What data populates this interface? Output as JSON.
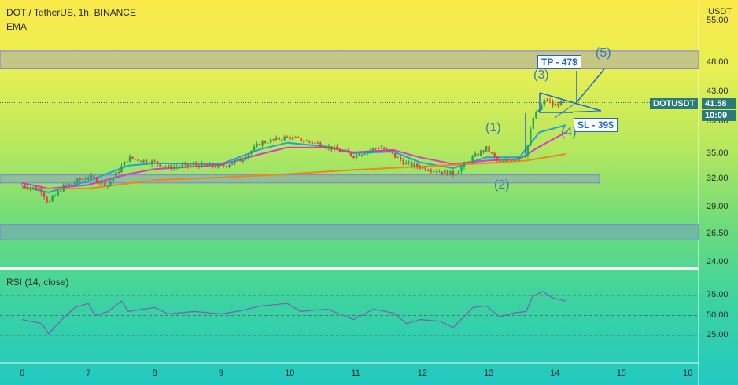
{
  "header": {
    "title": "DOT / TetherUS, 1h, BINANCE",
    "indicator": "EMA",
    "currency": "USDT"
  },
  "symbol_tag": {
    "name": "DOTUSDT",
    "price": "41.58",
    "countdown": "10:09"
  },
  "rsi": {
    "title": "RSI (14, close)"
  },
  "annotations": {
    "tp": "TP - 47$",
    "sl": "SL - 39$",
    "w1": "(1)",
    "w2": "(2)",
    "w3": "(3)",
    "w4": "(4)",
    "w5": "(5)"
  },
  "colors": {
    "up": "#22a35a",
    "down": "#e0413b",
    "ema_fast": "#1aa5d8",
    "ema_mid": "#d63cc8",
    "ema_slow": "#f0861c",
    "zone": "#7e7ee6",
    "rsi": "#7b5fb5",
    "annot": "#1f66d6"
  },
  "chart_data": [
    {
      "type": "candlestick",
      "title": "DOT / TetherUS, 1h, BINANCE",
      "y_ticks": [
        "24.00",
        "26.50",
        "29.00",
        "32.00",
        "35.00",
        "39.00",
        "43.00",
        "48.00",
        "55.00"
      ],
      "x_ticks": [
        "6",
        "7",
        "8",
        "9",
        "10",
        "11",
        "12",
        "13",
        "14",
        "15",
        "16"
      ],
      "price_series": [
        {
          "x": "6",
          "y": 31.4
        },
        {
          "x": "6.3",
          "y": 30.8
        },
        {
          "x": "6.4",
          "y": 29.4
        },
        {
          "x": "6.6",
          "y": 31.1
        },
        {
          "x": "7",
          "y": 32.3
        },
        {
          "x": "7.3",
          "y": 31.4
        },
        {
          "x": "7.6",
          "y": 34.5
        },
        {
          "x": "8",
          "y": 34.0
        },
        {
          "x": "8.2",
          "y": 33.4
        },
        {
          "x": "8.6",
          "y": 33.7
        },
        {
          "x": "9",
          "y": 33.5
        },
        {
          "x": "9.3",
          "y": 34.3
        },
        {
          "x": "9.6",
          "y": 36.4
        },
        {
          "x": "10",
          "y": 37.1
        },
        {
          "x": "10.5",
          "y": 36.2
        },
        {
          "x": "11",
          "y": 34.8
        },
        {
          "x": "11.4",
          "y": 35.9
        },
        {
          "x": "11.8",
          "y": 33.8
        },
        {
          "x": "12.2",
          "y": 33.1
        },
        {
          "x": "12.5",
          "y": 32.6
        },
        {
          "x": "12.8",
          "y": 34.6
        },
        {
          "x": "13",
          "y": 35.7
        },
        {
          "x": "13.2",
          "y": 33.9
        },
        {
          "x": "13.6",
          "y": 35.0
        },
        {
          "x": "13.7",
          "y": 39.4
        },
        {
          "x": "13.9",
          "y": 42.1
        },
        {
          "x": "14",
          "y": 41.2
        },
        {
          "x": "14.15",
          "y": 41.6
        }
      ],
      "ema_series": [
        {
          "name": "EMA",
          "color": "#1aa5d8",
          "points": [
            [
              6,
              31.2
            ],
            [
              6.4,
              30.6
            ],
            [
              7,
              31.8
            ],
            [
              7.6,
              33.6
            ],
            [
              8,
              33.9
            ],
            [
              9,
              33.8
            ],
            [
              9.6,
              35.6
            ],
            [
              10,
              36.4
            ],
            [
              10.6,
              35.9
            ],
            [
              11,
              35.1
            ],
            [
              11.6,
              35.3
            ],
            [
              12,
              34.0
            ],
            [
              12.5,
              33.3
            ],
            [
              13,
              34.6
            ],
            [
              13.5,
              34.6
            ],
            [
              13.8,
              37.7
            ],
            [
              14.2,
              38.6
            ]
          ]
        },
        {
          "name": "EMA",
          "color": "#d63cc8",
          "points": [
            [
              6,
              31.6
            ],
            [
              6.4,
              31.0
            ],
            [
              7,
              31.4
            ],
            [
              7.6,
              32.6
            ],
            [
              8,
              33.2
            ],
            [
              9,
              33.7
            ],
            [
              9.6,
              35.0
            ],
            [
              10,
              35.8
            ],
            [
              10.6,
              35.8
            ],
            [
              11,
              35.2
            ],
            [
              11.6,
              35.5
            ],
            [
              12,
              34.6
            ],
            [
              12.5,
              33.8
            ],
            [
              13,
              34.2
            ],
            [
              13.5,
              34.4
            ],
            [
              13.8,
              35.9
            ],
            [
              14.2,
              37.7
            ]
          ]
        },
        {
          "name": "EMA",
          "color": "#f0861c",
          "points": [
            [
              6,
              31.0
            ],
            [
              7,
              31.0
            ],
            [
              8,
              31.9
            ],
            [
              9,
              32.2
            ],
            [
              10,
              32.6
            ],
            [
              11,
              33.1
            ],
            [
              12,
              33.5
            ],
            [
              13,
              33.9
            ],
            [
              13.6,
              34.2
            ],
            [
              14.2,
              35.0
            ]
          ]
        }
      ],
      "zones": [
        [
          47.0,
          50.0
        ],
        [
          31.6,
          32.5
        ],
        [
          26.0,
          27.4
        ]
      ],
      "last_price": 41.58
    },
    {
      "type": "line",
      "title": "RSI (14, close)",
      "y_ticks": [
        "25.00",
        "50.00",
        "75.00"
      ],
      "levels": [
        30,
        50,
        70
      ],
      "series": [
        {
          "name": "RSI",
          "points": [
            [
              6,
              45
            ],
            [
              6.3,
              40
            ],
            [
              6.4,
              27
            ],
            [
              6.6,
              45
            ],
            [
              6.8,
              60
            ],
            [
              7,
              65
            ],
            [
              7.1,
              50
            ],
            [
              7.3,
              55
            ],
            [
              7.5,
              68
            ],
            [
              7.6,
              55
            ],
            [
              8,
              60
            ],
            [
              8.2,
              52
            ],
            [
              8.6,
              55
            ],
            [
              9,
              52
            ],
            [
              9.3,
              56
            ],
            [
              9.6,
              62
            ],
            [
              10,
              65
            ],
            [
              10.2,
              55
            ],
            [
              10.6,
              58
            ],
            [
              11,
              45
            ],
            [
              11.3,
              58
            ],
            [
              11.6,
              53
            ],
            [
              11.8,
              40
            ],
            [
              12,
              45
            ],
            [
              12.3,
              43
            ],
            [
              12.5,
              35
            ],
            [
              12.8,
              60
            ],
            [
              13,
              62
            ],
            [
              13.2,
              48
            ],
            [
              13.4,
              53
            ],
            [
              13.6,
              55
            ],
            [
              13.7,
              74
            ],
            [
              13.85,
              80
            ],
            [
              14,
              72
            ],
            [
              14.2,
              68
            ]
          ]
        }
      ]
    }
  ]
}
